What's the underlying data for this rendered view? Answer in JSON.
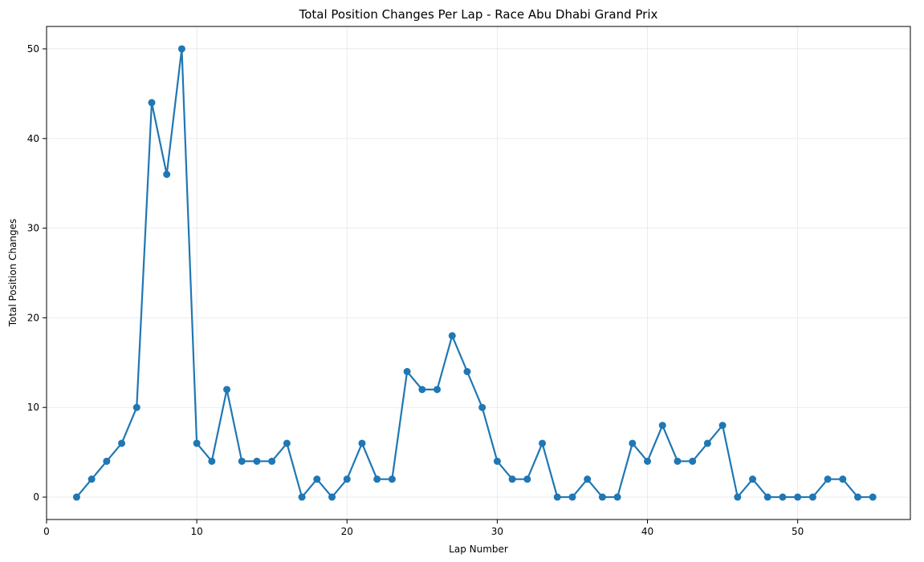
{
  "chart_data": {
    "type": "line",
    "title": "Total Position Changes Per Lap - Race Abu Dhabi Grand Prix",
    "xlabel": "Lap Number",
    "ylabel": "Total Position Changes",
    "xlim": [
      0,
      57.5
    ],
    "ylim": [
      -2.5,
      52.5
    ],
    "xticks": [
      0,
      10,
      20,
      30,
      40,
      50
    ],
    "yticks": [
      0,
      10,
      20,
      30,
      40,
      50
    ],
    "grid": true,
    "line_color": "#1f77b4",
    "series": [
      {
        "x": [
          2,
          3,
          4,
          5,
          6,
          7,
          8,
          9,
          10,
          11,
          12,
          13,
          14,
          15,
          16,
          17,
          18,
          19,
          20,
          21,
          22,
          23,
          24,
          25,
          26,
          27,
          28,
          29,
          30,
          31,
          32,
          33,
          34,
          35,
          36,
          37,
          38,
          39,
          40,
          41,
          42,
          43,
          44,
          45,
          46,
          47,
          48,
          49,
          50,
          51,
          52,
          53,
          54,
          55
        ],
        "values": [
          0,
          2,
          4,
          6,
          10,
          44,
          36,
          50,
          6,
          4,
          12,
          4,
          4,
          4,
          6,
          0,
          2,
          0,
          2,
          6,
          2,
          2,
          14,
          12,
          12,
          18,
          14,
          10,
          4,
          2,
          2,
          6,
          0,
          0,
          2,
          0,
          0,
          6,
          4,
          8,
          4,
          4,
          6,
          8,
          0,
          2,
          0,
          0,
          0,
          0,
          2,
          2,
          0,
          0
        ]
      }
    ]
  }
}
